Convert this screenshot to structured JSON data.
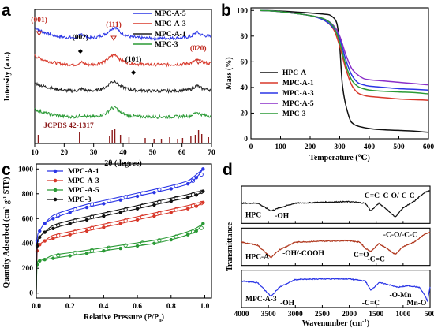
{
  "panels": {
    "a": "a",
    "b": "b",
    "c": "c",
    "d": "d"
  },
  "chart_data": [
    {
      "id": "a",
      "type": "line",
      "title": "",
      "xlabel": "2θ (degree)",
      "ylabel": "Intensity (a.u.)",
      "xlim": [
        10,
        70
      ],
      "xticks": [
        10,
        20,
        30,
        40,
        50,
        60,
        70
      ],
      "legend": "top-right",
      "series": [
        {
          "name": "MPC-A-5",
          "color": "#2a35e6",
          "offset": 3.0,
          "x": [
            10,
            13,
            16,
            20,
            24,
            26,
            28,
            31,
            34,
            36,
            37.5,
            39,
            42,
            45,
            50,
            55,
            60,
            63,
            65,
            67,
            70
          ],
          "y": [
            0.8,
            0.62,
            0.5,
            0.42,
            0.4,
            0.55,
            0.4,
            0.42,
            0.55,
            0.75,
            0.82,
            0.6,
            0.45,
            0.4,
            0.38,
            0.38,
            0.4,
            0.45,
            0.62,
            0.5,
            0.45
          ]
        },
        {
          "name": "MPC-A-3",
          "color": "#d8382a",
          "offset": 2.0,
          "x": [
            10,
            13,
            16,
            20,
            24,
            26,
            28,
            31,
            34,
            36,
            37.5,
            39,
            42,
            45,
            50,
            55,
            60,
            63,
            65,
            67,
            70
          ],
          "y": [
            0.7,
            0.55,
            0.45,
            0.38,
            0.36,
            0.45,
            0.36,
            0.38,
            0.5,
            0.7,
            0.75,
            0.55,
            0.42,
            0.38,
            0.36,
            0.36,
            0.38,
            0.42,
            0.55,
            0.45,
            0.4
          ]
        },
        {
          "name": "MPC-A-1",
          "color": "#222222",
          "offset": 1.0,
          "x": [
            10,
            13,
            16,
            20,
            24,
            26,
            28,
            31,
            34,
            36,
            37.5,
            39,
            42,
            45,
            50,
            55,
            60,
            63,
            65,
            67,
            70
          ],
          "y": [
            0.65,
            0.52,
            0.44,
            0.36,
            0.34,
            0.42,
            0.34,
            0.36,
            0.48,
            0.68,
            0.72,
            0.52,
            0.4,
            0.36,
            0.34,
            0.34,
            0.36,
            0.4,
            0.55,
            0.42,
            0.38
          ]
        },
        {
          "name": "MPC-3",
          "color": "#2a9a35",
          "offset": 0.0,
          "x": [
            10,
            13,
            16,
            20,
            24,
            26,
            28,
            31,
            34,
            36,
            37.5,
            39,
            42,
            45,
            50,
            55,
            60,
            63,
            65,
            67,
            70
          ],
          "y": [
            0.62,
            0.5,
            0.42,
            0.35,
            0.33,
            0.4,
            0.33,
            0.35,
            0.46,
            0.66,
            0.7,
            0.5,
            0.38,
            0.35,
            0.33,
            0.33,
            0.35,
            0.38,
            0.52,
            0.4,
            0.36
          ]
        }
      ],
      "reference": {
        "label": "JCPDS 42-1317",
        "color": "#8b1a1a",
        "positions": [
          11.2,
          25.2,
          35.4,
          36.3,
          37.2,
          39.1,
          42.0,
          47.5,
          50.5,
          53.0,
          55.8,
          58.5,
          60.2,
          63.0,
          64.5,
          65.6,
          66.7,
          69.0
        ],
        "heights": [
          0.55,
          0.7,
          0.5,
          0.85,
          0.95,
          0.55,
          0.4,
          0.35,
          0.3,
          0.3,
          0.4,
          0.3,
          0.35,
          0.45,
          0.55,
          0.85,
          0.6,
          0.4
        ]
      },
      "annotations": [
        {
          "text": "(001)",
          "x": 11.5,
          "color": "#c0281e"
        },
        {
          "text": "(002)",
          "x": 25.5,
          "color": "#000000"
        },
        {
          "text": "(111)",
          "x": 36.8,
          "color": "#c0281e"
        },
        {
          "text": "(101)",
          "x": 43.5,
          "color": "#000000"
        },
        {
          "text": "(020)",
          "x": 65.5,
          "color": "#c0281e"
        }
      ]
    },
    {
      "id": "b",
      "type": "line",
      "title": "",
      "xlabel": "Temperature (℃)",
      "ylabel": "Mass (%)",
      "xlim": [
        0,
        600
      ],
      "ylim": [
        0,
        100
      ],
      "xticks": [
        0,
        100,
        200,
        300,
        400,
        500,
        600
      ],
      "yticks": [
        0,
        20,
        40,
        60,
        80,
        100
      ],
      "legend": "left",
      "series": [
        {
          "name": "HPC-A",
          "color": "#111111",
          "x": [
            30,
            100,
            200,
            250,
            270,
            290,
            300,
            310,
            330,
            350,
            400,
            450,
            500,
            550,
            600
          ],
          "y": [
            100,
            99.5,
            98,
            97,
            96,
            90,
            72,
            40,
            18,
            11,
            8,
            7,
            6.5,
            6,
            5
          ]
        },
        {
          "name": "MPC-A-1",
          "color": "#d8382a",
          "x": [
            30,
            100,
            200,
            250,
            280,
            300,
            320,
            340,
            360,
            380,
            400,
            450,
            500,
            550,
            600
          ],
          "y": [
            100,
            99,
            96,
            92,
            85,
            72,
            55,
            42,
            36,
            34,
            33,
            32,
            31,
            30.5,
            30
          ]
        },
        {
          "name": "MPC-A-3",
          "color": "#2a35e6",
          "x": [
            30,
            100,
            200,
            250,
            280,
            300,
            320,
            340,
            360,
            380,
            400,
            450,
            500,
            550,
            600
          ],
          "y": [
            100,
            99,
            96,
            92,
            86,
            78,
            62,
            50,
            44,
            42,
            41,
            40,
            39,
            38.5,
            38
          ]
        },
        {
          "name": "MPC-A-5",
          "color": "#8a2fc9",
          "x": [
            30,
            100,
            200,
            250,
            280,
            300,
            320,
            340,
            360,
            380,
            400,
            450,
            500,
            550,
            600
          ],
          "y": [
            100,
            99,
            96,
            93,
            88,
            80,
            66,
            55,
            50,
            47,
            46,
            45,
            44,
            43,
            42
          ]
        },
        {
          "name": "MPC-3",
          "color": "#2a9a35",
          "x": [
            30,
            100,
            200,
            250,
            280,
            300,
            320,
            340,
            360,
            380,
            400,
            450,
            500,
            550,
            600
          ],
          "y": [
            100,
            99,
            96,
            93,
            87,
            75,
            58,
            46,
            41,
            39,
            38,
            37,
            36.5,
            36,
            35
          ]
        }
      ]
    },
    {
      "id": "c",
      "type": "line",
      "title": "",
      "xlabel": "Relative Pressure (P/P0)",
      "xlabel_main": "Relative Pressure (P/P",
      "xlabel_sub": "0",
      "xlabel_end": ")",
      "ylabel": "Quantity Adsorbed (cm3 g-1 STP)",
      "ylabel_main": "Quantity Adsorbed (cm",
      "ylabel_sup1": "3",
      "ylabel_mid": " g",
      "ylabel_sup2": "-1",
      "ylabel_end": " STP)",
      "xlim": [
        0,
        1.0
      ],
      "ylim": [
        0,
        1000
      ],
      "xticks": [
        0.0,
        0.2,
        0.4,
        0.6,
        0.8,
        1.0
      ],
      "yticks": [
        0,
        200,
        400,
        600,
        800,
        1000
      ],
      "legend": "top-left",
      "series": [
        {
          "name": "MPC-A-1",
          "color": "#2a35e6",
          "x": [
            0.0,
            0.005,
            0.02,
            0.05,
            0.1,
            0.2,
            0.3,
            0.4,
            0.5,
            0.6,
            0.7,
            0.8,
            0.9,
            0.95,
            0.99
          ],
          "y": [
            0,
            420,
            500,
            560,
            600,
            650,
            690,
            720,
            750,
            780,
            810,
            840,
            880,
            930,
            1000
          ]
        },
        {
          "name": "MPC-A-3",
          "color": "#d8382a",
          "x": [
            0.0,
            0.005,
            0.02,
            0.05,
            0.1,
            0.2,
            0.3,
            0.4,
            0.5,
            0.6,
            0.7,
            0.8,
            0.9,
            0.95,
            0.99
          ],
          "y": [
            0,
            340,
            390,
            420,
            440,
            470,
            500,
            530,
            560,
            590,
            620,
            650,
            680,
            700,
            730
          ]
        },
        {
          "name": "MPC-A-5",
          "color": "#2a9a35",
          "x": [
            0.0,
            0.005,
            0.02,
            0.05,
            0.1,
            0.2,
            0.3,
            0.4,
            0.5,
            0.6,
            0.7,
            0.8,
            0.9,
            0.95,
            0.99
          ],
          "y": [
            0,
            230,
            260,
            270,
            280,
            300,
            320,
            340,
            360,
            380,
            400,
            430,
            470,
            500,
            560
          ]
        },
        {
          "name": "MPC-3",
          "color": "#111111",
          "x": [
            0.0,
            0.005,
            0.02,
            0.05,
            0.1,
            0.2,
            0.3,
            0.4,
            0.5,
            0.6,
            0.7,
            0.8,
            0.9,
            0.95,
            0.99
          ],
          "y": [
            0,
            380,
            450,
            490,
            520,
            560,
            590,
            620,
            650,
            680,
            710,
            740,
            770,
            790,
            820
          ]
        }
      ]
    },
    {
      "id": "d",
      "type": "line",
      "title": "",
      "xlabel": "Wavenumber (cm-1)",
      "xlabel_main": "Wavenumber (cm",
      "xlabel_sup": "-1",
      "xlabel_end": ")",
      "ylabel": "Transmittance",
      "xlim": [
        4000,
        500
      ],
      "xticks": [
        4000,
        3500,
        3000,
        2500,
        2000,
        1500,
        1000,
        500
      ],
      "subpanels": [
        {
          "label": "HPC",
          "color": "#111111",
          "x": [
            4000,
            3700,
            3450,
            3300,
            3000,
            2500,
            2000,
            1700,
            1600,
            1450,
            1300,
            1150,
            1000,
            800,
            600,
            500
          ],
          "y": [
            0.55,
            0.55,
            0.3,
            0.4,
            0.55,
            0.58,
            0.6,
            0.55,
            0.3,
            0.55,
            0.35,
            0.1,
            0.4,
            0.6,
            0.9,
            0.95
          ],
          "annotations": [
            {
              "text": "-OH",
              "x": 3250,
              "y": 0.15
            },
            {
              "text": "-C=C",
              "x": 1600,
              "y": 0.8
            },
            {
              "text": "-C-O/-C-C",
              "x": 1100,
              "y": 0.8
            }
          ]
        },
        {
          "label": "HPC-A",
          "color": "#b0381e",
          "x": [
            4000,
            3700,
            3450,
            3300,
            3000,
            2500,
            2000,
            1800,
            1700,
            1600,
            1450,
            1300,
            1150,
            1000,
            800,
            600,
            500
          ],
          "y": [
            0.65,
            0.55,
            0.15,
            0.4,
            0.65,
            0.68,
            0.7,
            0.65,
            0.45,
            0.35,
            0.6,
            0.45,
            0.25,
            0.5,
            0.65,
            0.9,
            0.98
          ],
          "annotations": [
            {
              "text": "-OH/-COOH",
              "x": 2850,
              "y": 0.3
            },
            {
              "text": "-C=O",
              "x": 1800,
              "y": 0.25
            },
            {
              "text": "-C=C",
              "x": 1500,
              "y": 0.1
            },
            {
              "text": "-C-O/-C-C",
              "x": 1050,
              "y": 0.9
            }
          ]
        },
        {
          "label": "MPC-A-3",
          "color": "#2a35e6",
          "x": [
            4000,
            3700,
            3450,
            3300,
            3000,
            2500,
            2000,
            1700,
            1600,
            1450,
            1300,
            1100,
            900,
            700,
            600,
            550,
            500
          ],
          "y": [
            0.75,
            0.7,
            0.25,
            0.55,
            0.8,
            0.82,
            0.82,
            0.75,
            0.45,
            0.7,
            0.65,
            0.55,
            0.6,
            0.55,
            0.3,
            0.1,
            0.55
          ],
          "annotations": [
            {
              "text": "-OH",
              "x": 3150,
              "y": 0.05
            },
            {
              "text": "-C=C",
              "x": 1600,
              "y": 0.05
            },
            {
              "text": "-O-Mn",
              "x": 1050,
              "y": 0.3
            },
            {
              "text": "Mn-O",
              "x": 750,
              "y": 0.05
            }
          ]
        }
      ]
    }
  ]
}
